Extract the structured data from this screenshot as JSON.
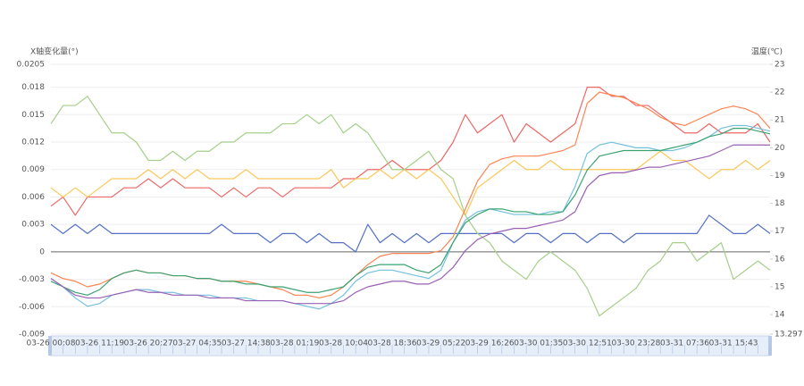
{
  "chart_data": {
    "type": "line",
    "y_label": "X轴变化量(°)",
    "y2_label": "温度(℃)",
    "categories": [
      "03-26 00:08",
      null,
      null,
      null,
      "03-26 11:19",
      null,
      null,
      null,
      "03-26 20:27",
      null,
      null,
      null,
      "03-27 04:35",
      null,
      null,
      null,
      "03-27 14:38",
      null,
      null,
      null,
      "03-28 01:19",
      null,
      null,
      null,
      "03-28 10:04",
      null,
      null,
      null,
      "03-28 18:36",
      null,
      null,
      null,
      "03-29 05:22",
      null,
      null,
      null,
      "03-29 16:26",
      null,
      null,
      null,
      "03-30 01:35",
      null,
      null,
      null,
      "03-30 12:51",
      null,
      null,
      null,
      "03-30 23:28",
      null,
      null,
      null,
      "03-31 07:36",
      null,
      null,
      null,
      "03-31 15:43",
      null,
      null,
      null
    ],
    "ylim": [
      -0.009,
      0.0205
    ],
    "yticks": [
      -0.009,
      -0.006,
      -0.003,
      0,
      0.003,
      0.006,
      0.009,
      0.012,
      0.015,
      0.018,
      0.0205
    ],
    "y2lim": [
      13.297,
      23
    ],
    "y2ticks": [
      13.297,
      14,
      15,
      16,
      17,
      18,
      19,
      20,
      21,
      22,
      23
    ],
    "grid": true,
    "series": [
      {
        "color": "#5470c6",
        "values": [
          0.003,
          0.002,
          0.003,
          0.002,
          0.003,
          0.002,
          0.002,
          0.002,
          0.002,
          0.002,
          0.002,
          0.002,
          0.002,
          0.002,
          0.003,
          0.002,
          0.002,
          0.002,
          0.001,
          0.002,
          0.002,
          0.001,
          0.002,
          0.001,
          0.001,
          0,
          0.003,
          0.001,
          0.002,
          0.001,
          0.002,
          0.001,
          0.002,
          0.002,
          0.002,
          0.002,
          0.002,
          0.002,
          0.001,
          0.002,
          0.002,
          0.001,
          0.002,
          0.002,
          0.001,
          0.002,
          0.002,
          0.001,
          0.002,
          0.002,
          0.002,
          0.002,
          0.002,
          0.002,
          0.004,
          0.003,
          0.002,
          0.002,
          0.003,
          0.002
        ]
      },
      {
        "color": "#ee6666",
        "values": [
          0.005,
          0.006,
          0.004,
          0.006,
          0.006,
          0.006,
          0.007,
          0.007,
          0.008,
          0.007,
          0.008,
          0.007,
          0.007,
          0.007,
          0.006,
          0.007,
          0.006,
          0.007,
          0.007,
          0.006,
          0.007,
          0.007,
          0.007,
          0.007,
          0.008,
          0.008,
          0.009,
          0.009,
          0.01,
          0.009,
          0.009,
          0.009,
          0.01,
          0.012,
          0.015,
          0.013,
          0.014,
          0.015,
          0.012,
          0.014,
          0.013,
          0.012,
          0.013,
          0.014,
          0.018,
          0.018,
          0.017,
          0.017,
          0.016,
          0.016,
          0.015,
          0.014,
          0.013,
          0.013,
          0.014,
          0.013,
          0.013,
          0.013,
          0.014,
          0.012
        ]
      },
      {
        "color": "#fac858",
        "values": [
          0.007,
          0.006,
          0.007,
          0.006,
          0.007,
          0.008,
          0.008,
          0.008,
          0.009,
          0.008,
          0.009,
          0.008,
          0.009,
          0.008,
          0.008,
          0.008,
          0.009,
          0.008,
          0.008,
          0.008,
          0.008,
          0.008,
          0.008,
          0.009,
          0.007,
          0.008,
          0.008,
          0.009,
          0.008,
          0.009,
          0.008,
          0.009,
          0.008,
          0.006,
          0.004,
          0.007,
          0.008,
          0.009,
          0.01,
          0.009,
          0.009,
          0.01,
          0.009,
          0.009,
          0.009,
          0.009,
          0.009,
          0.009,
          0.009,
          0.01,
          0.011,
          0.01,
          0.01,
          0.009,
          0.008,
          0.009,
          0.009,
          0.01,
          0.009,
          0.01
        ]
      },
      {
        "color": "#a5cf8a",
        "values": [
          0.014,
          0.016,
          0.016,
          0.017,
          0.015,
          0.013,
          0.013,
          0.012,
          0.01,
          0.01,
          0.011,
          0.01,
          0.011,
          0.011,
          0.012,
          0.012,
          0.013,
          0.013,
          0.013,
          0.014,
          0.014,
          0.015,
          0.014,
          0.015,
          0.013,
          0.014,
          0.013,
          0.011,
          0.009,
          0.009,
          0.01,
          0.011,
          0.009,
          0.008,
          0.004,
          0.002,
          0.001,
          -0.001,
          -0.002,
          -0.003,
          -0.001,
          0,
          -0.001,
          -0.002,
          -0.004,
          -0.007,
          -0.006,
          -0.005,
          -0.004,
          -0.002,
          -0.001,
          0.001,
          0.001,
          -0.001,
          0,
          0.001,
          -0.003,
          -0.002,
          -0.001,
          -0.002
        ]
      },
      {
        "color": "#fc8452",
        "axis": "y2",
        "values": [
          15.5,
          15.3,
          15.2,
          15.0,
          15.1,
          15.3,
          15.5,
          15.6,
          15.5,
          15.5,
          15.4,
          15.4,
          15.3,
          15.3,
          15.2,
          15.2,
          15.2,
          15.1,
          15.0,
          14.9,
          14.7,
          14.7,
          14.6,
          14.7,
          15.0,
          15.4,
          15.8,
          16.1,
          16.2,
          16.2,
          16.2,
          16.2,
          16.3,
          16.8,
          17.8,
          18.8,
          19.4,
          19.6,
          19.7,
          19.7,
          19.7,
          19.8,
          19.9,
          20.1,
          21.6,
          22.0,
          21.9,
          21.8,
          21.6,
          21.4,
          21.1,
          20.9,
          20.8,
          21.0,
          21.2,
          21.4,
          21.5,
          21.4,
          21.2,
          20.7
        ]
      },
      {
        "color": "#73c0de",
        "axis": "y2",
        "values": [
          15.3,
          15.0,
          14.6,
          14.3,
          14.4,
          14.7,
          14.8,
          14.9,
          14.9,
          14.8,
          14.8,
          14.7,
          14.7,
          14.7,
          14.6,
          14.6,
          14.6,
          14.5,
          14.5,
          14.5,
          14.4,
          14.3,
          14.2,
          14.4,
          14.7,
          15.2,
          15.5,
          15.6,
          15.6,
          15.5,
          15.4,
          15.3,
          15.6,
          16.6,
          17.4,
          17.7,
          17.8,
          17.7,
          17.6,
          17.6,
          17.6,
          17.7,
          17.7,
          18.6,
          19.8,
          20.1,
          20.2,
          20.1,
          20.0,
          20.0,
          19.9,
          19.9,
          20.0,
          20.2,
          20.4,
          20.7,
          20.8,
          20.8,
          20.7,
          20.6
        ]
      },
      {
        "color": "#3ba272",
        "axis": "y2",
        "values": [
          15.2,
          15.0,
          14.8,
          14.7,
          14.9,
          15.3,
          15.5,
          15.6,
          15.5,
          15.5,
          15.4,
          15.4,
          15.3,
          15.3,
          15.2,
          15.2,
          15.1,
          15.1,
          15.0,
          15.0,
          14.9,
          14.8,
          14.8,
          14.9,
          15.0,
          15.4,
          15.7,
          15.8,
          15.8,
          15.8,
          15.6,
          15.5,
          15.8,
          16.6,
          17.3,
          17.6,
          17.8,
          17.8,
          17.7,
          17.7,
          17.6,
          17.6,
          17.7,
          18.3,
          19.2,
          19.7,
          19.8,
          19.9,
          19.9,
          19.9,
          19.9,
          20.0,
          20.1,
          20.2,
          20.4,
          20.5,
          20.7,
          20.7,
          20.6,
          20.5
        ]
      },
      {
        "color": "#9a60b4",
        "axis": "y2",
        "values": [
          15.3,
          15.0,
          14.7,
          14.6,
          14.6,
          14.7,
          14.8,
          14.9,
          14.8,
          14.8,
          14.7,
          14.7,
          14.7,
          14.6,
          14.6,
          14.6,
          14.5,
          14.5,
          14.5,
          14.5,
          14.4,
          14.4,
          14.4,
          14.4,
          14.5,
          14.8,
          15.0,
          15.1,
          15.2,
          15.2,
          15.1,
          15.1,
          15.3,
          15.7,
          16.3,
          16.7,
          16.9,
          17.0,
          17.1,
          17.1,
          17.2,
          17.3,
          17.4,
          17.7,
          18.6,
          19.0,
          19.1,
          19.1,
          19.2,
          19.3,
          19.3,
          19.4,
          19.5,
          19.6,
          19.7,
          19.9,
          20.1,
          20.1,
          20.1,
          20.1
        ]
      }
    ]
  }
}
